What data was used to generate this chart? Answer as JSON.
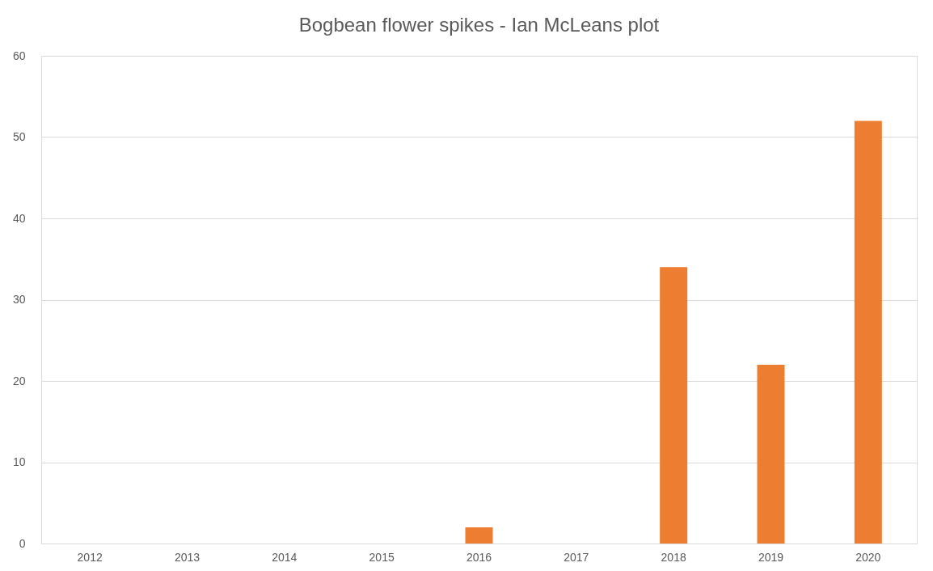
{
  "chart_data": {
    "type": "bar",
    "title": "Bogbean flower spikes - Ian McLeans plot",
    "categories": [
      "2012",
      "2013",
      "2014",
      "2015",
      "2016",
      "2017",
      "2018",
      "2019",
      "2020"
    ],
    "values": [
      0,
      0,
      0,
      0,
      2,
      0,
      34,
      22,
      52
    ],
    "color": "#ed7d31",
    "ylim": [
      0,
      60
    ],
    "yticks": [
      0,
      10,
      20,
      30,
      40,
      50,
      60
    ],
    "grid": "y"
  }
}
